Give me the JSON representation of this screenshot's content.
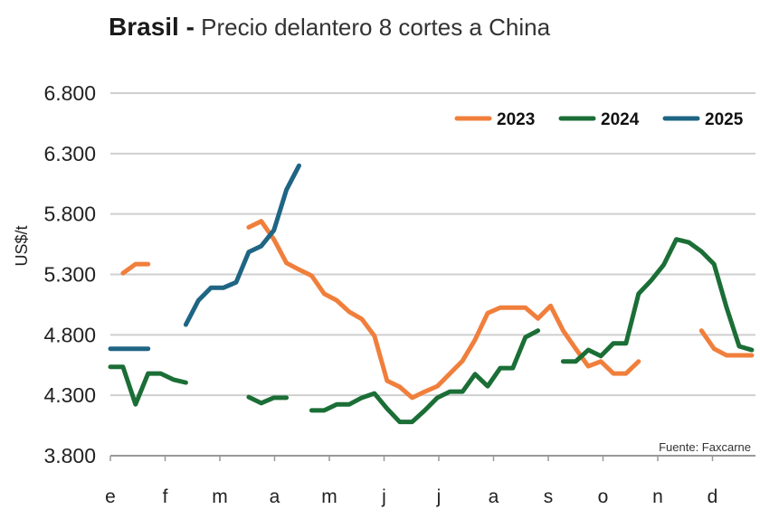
{
  "title": {
    "bold": "Brasil -",
    "rest": " Precio delantero 8 cortes a China"
  },
  "source": "Fuente: Faxcarne",
  "chart_data": {
    "type": "line",
    "title": "Brasil - Precio delantero 8 cortes a China",
    "ylabel": "US$/t",
    "xlabel": "",
    "ylim": [
      3800,
      6800
    ],
    "yticks": [
      "3.800",
      "4.300",
      "4.800",
      "5.300",
      "5.800",
      "6.300",
      "6.800"
    ],
    "ytick_values": [
      3800,
      4300,
      4800,
      5300,
      5800,
      6300,
      6800
    ],
    "xlim": [
      0,
      52
    ],
    "xticks": [
      "e",
      "f",
      "m",
      "a",
      "m",
      "j",
      "j",
      "a",
      "s",
      "o",
      "n",
      "d"
    ],
    "x_unit": "week of year",
    "grid": true,
    "legend_position": "top-right",
    "series": [
      {
        "name": "2023",
        "color": "#F07F3C",
        "segments": [
          [
            [
              1,
              5310
            ],
            [
              2,
              5385
            ],
            [
              3,
              5385
            ]
          ],
          [
            [
              11,
              5690
            ],
            [
              12,
              5740
            ],
            [
              13,
              5590
            ],
            [
              14,
              5395
            ],
            [
              15,
              5340
            ],
            [
              16,
              5290
            ],
            [
              17,
              5140
            ],
            [
              18,
              5085
            ],
            [
              19,
              4990
            ],
            [
              20,
              4930
            ],
            [
              21,
              4790
            ],
            [
              22,
              4420
            ],
            [
              23,
              4370
            ],
            [
              24,
              4280
            ],
            [
              25,
              4330
            ],
            [
              26,
              4375
            ],
            [
              27,
              4480
            ],
            [
              28,
              4585
            ],
            [
              29,
              4760
            ],
            [
              30,
              4980
            ],
            [
              31,
              5025
            ],
            [
              32,
              5025
            ],
            [
              33,
              5025
            ],
            [
              34,
              4935
            ],
            [
              35,
              5040
            ],
            [
              36,
              4835
            ],
            [
              37,
              4685
            ],
            [
              38,
              4540
            ],
            [
              39,
              4580
            ],
            [
              40,
              4480
            ],
            [
              41,
              4480
            ],
            [
              42,
              4580
            ]
          ],
          [
            [
              47,
              4835
            ],
            [
              48,
              4685
            ],
            [
              49,
              4630
            ],
            [
              50,
              4630
            ],
            [
              51,
              4630
            ]
          ]
        ]
      },
      {
        "name": "2024",
        "color": "#1B6E36",
        "segments": [
          [
            [
              0,
              4535
            ],
            [
              1,
              4535
            ],
            [
              2,
              4225
            ],
            [
              3,
              4480
            ],
            [
              4,
              4480
            ],
            [
              5,
              4430
            ],
            [
              6,
              4405
            ]
          ],
          [
            [
              11,
              4285
            ],
            [
              12,
              4235
            ],
            [
              13,
              4280
            ],
            [
              14,
              4280
            ]
          ],
          [
            [
              16,
              4175
            ],
            [
              17,
              4175
            ],
            [
              18,
              4225
            ],
            [
              19,
              4225
            ],
            [
              20,
              4280
            ],
            [
              21,
              4315
            ],
            [
              22,
              4190
            ],
            [
              23,
              4080
            ],
            [
              24,
              4080
            ],
            [
              25,
              4175
            ],
            [
              26,
              4280
            ],
            [
              27,
              4330
            ],
            [
              28,
              4330
            ],
            [
              29,
              4475
            ],
            [
              30,
              4375
            ],
            [
              31,
              4525
            ],
            [
              32,
              4525
            ],
            [
              33,
              4780
            ],
            [
              34,
              4835
            ]
          ],
          [
            [
              36,
              4580
            ],
            [
              37,
              4580
            ],
            [
              38,
              4675
            ],
            [
              39,
              4625
            ],
            [
              40,
              4730
            ],
            [
              41,
              4730
            ],
            [
              42,
              5140
            ],
            [
              43,
              5250
            ],
            [
              44,
              5380
            ],
            [
              45,
              5590
            ],
            [
              46,
              5565
            ],
            [
              47,
              5490
            ],
            [
              48,
              5385
            ],
            [
              49,
              5025
            ],
            [
              50,
              4705
            ],
            [
              51,
              4675
            ]
          ]
        ]
      },
      {
        "name": "2025",
        "color": "#1F6584",
        "segments": [
          [
            [
              0,
              4685
            ],
            [
              1,
              4685
            ],
            [
              2,
              4685
            ],
            [
              3,
              4685
            ]
          ],
          [
            [
              6,
              4885
            ],
            [
              7,
              5085
            ],
            [
              8,
              5190
            ],
            [
              9,
              5190
            ],
            [
              10,
              5235
            ],
            [
              11,
              5485
            ],
            [
              12,
              5535
            ],
            [
              13,
              5665
            ],
            [
              14,
              6000
            ],
            [
              15,
              6200
            ]
          ]
        ]
      }
    ]
  }
}
